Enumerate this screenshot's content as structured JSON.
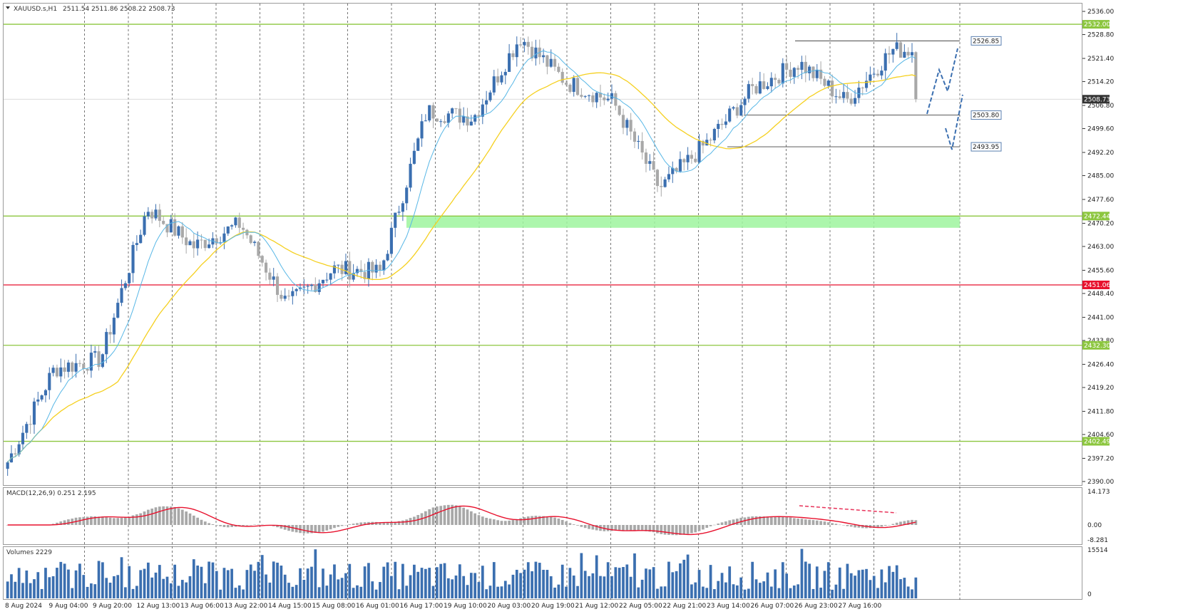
{
  "header": {
    "symbol": "XAUUSD.s,H1",
    "ohlc": "2511.54 2511.86 2508.22 2508.73"
  },
  "colors": {
    "bull": "#3b6fb0",
    "bear": "#a8a8a8",
    "ma_fast": "#58b7e6",
    "ma_slow": "#f5d020",
    "level_green": "#8cc63f",
    "level_red": "#e8112d",
    "zone_green": "#9ef59e",
    "macd_signal": "#e8112d",
    "macd_hist": "#a8a8a8",
    "volume": "#3b6fb0",
    "forecast": "#3b6fb0"
  },
  "price_axis": {
    "ticks": [
      "2536.00",
      "2528.80",
      "2521.40",
      "2514.20",
      "2506.80",
      "2499.60",
      "2492.20",
      "2485.00",
      "2477.60",
      "2470.20",
      "2463.00",
      "2455.60",
      "2448.40",
      "2441.00",
      "2433.80",
      "2426.40",
      "2419.20",
      "2411.80",
      "2404.60",
      "2397.20",
      "2390.00"
    ],
    "current_label": "2508.73"
  },
  "time_axis": {
    "labels": [
      "8 Aug 2024",
      "9 Aug 04:00",
      "9 Aug 20:00",
      "12 Aug 13:00",
      "13 Aug 06:00",
      "13 Aug 22:00",
      "14 Aug 15:00",
      "15 Aug 08:00",
      "16 Aug 01:00",
      "16 Aug 17:00",
      "19 Aug 10:00",
      "20 Aug 03:00",
      "20 Aug 19:00",
      "21 Aug 12:00",
      "22 Aug 05:00",
      "22 Aug 21:00",
      "23 Aug 14:00",
      "26 Aug 07:00",
      "26 Aug 23:00",
      "27 Aug 16:00"
    ]
  },
  "levels": [
    {
      "label": "2532.00",
      "type": "support-resistance"
    },
    {
      "label": "2472.44",
      "type": "support-resistance"
    },
    {
      "label": "2451.06",
      "type": "key"
    },
    {
      "label": "2432.30",
      "type": "support-resistance"
    },
    {
      "label": "2402.49",
      "type": "support-resistance"
    }
  ],
  "annotations": [
    {
      "label": "2526.85"
    },
    {
      "label": "2503.80"
    },
    {
      "label": "2493.95"
    }
  ],
  "macd": {
    "title": "MACD(12,26,9) 0.251 2.195",
    "ticks": [
      "14.173",
      "0.00",
      "-8.281"
    ]
  },
  "volumes": {
    "title": "Volumes 2229",
    "ticks": [
      "15514",
      "0"
    ]
  },
  "chart_data": {
    "type": "candlestick",
    "y_unit": "price",
    "ylim": [
      2390.0,
      2536.0
    ],
    "key_points": [
      {
        "time": "8 Aug 2024",
        "close": 2396
      },
      {
        "time": "9 Aug 04:00",
        "close": 2425
      },
      {
        "time": "9 Aug 20:00",
        "close": 2428
      },
      {
        "time": "12 Aug 13:00",
        "close": 2475
      },
      {
        "time": "13 Aug 06:00",
        "close": 2463
      },
      {
        "time": "13 Aug 22:00",
        "close": 2470
      },
      {
        "time": "14 Aug 15:00",
        "close": 2445
      },
      {
        "time": "15 Aug 08:00",
        "close": 2456
      },
      {
        "time": "16 Aug 01:00",
        "close": 2455
      },
      {
        "time": "16 Aug 17:00",
        "close": 2505
      },
      {
        "time": "19 Aug 10:00",
        "close": 2503
      },
      {
        "time": "20 Aug 03:00",
        "close": 2528
      },
      {
        "time": "20 Aug 19:00",
        "close": 2514
      },
      {
        "time": "21 Aug 12:00",
        "close": 2508
      },
      {
        "time": "22 Aug 05:00",
        "close": 2481
      },
      {
        "time": "22 Aug 21:00",
        "close": 2495
      },
      {
        "time": "23 Aug 14:00",
        "close": 2512
      },
      {
        "time": "26 Aug 07:00",
        "close": 2520
      },
      {
        "time": "26 Aug 23:00",
        "close": 2508
      },
      {
        "time": "27 Aug 16:00",
        "close": 2524
      }
    ],
    "last_close": 2508.73
  }
}
